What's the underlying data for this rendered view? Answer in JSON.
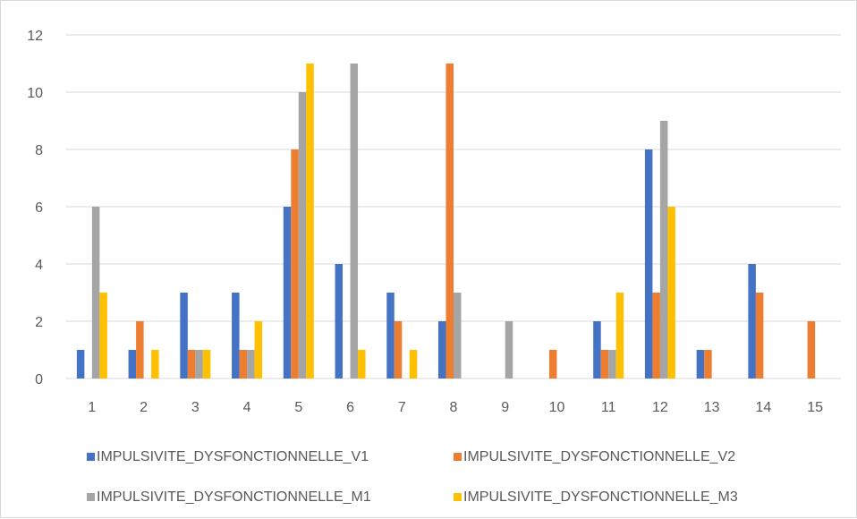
{
  "chart_data": {
    "type": "bar",
    "title": "",
    "xlabel": "",
    "ylabel": "",
    "categories": [
      "1",
      "2",
      "3",
      "4",
      "5",
      "6",
      "7",
      "8",
      "9",
      "10",
      "11",
      "12",
      "13",
      "14",
      "15"
    ],
    "ylim": [
      0,
      12
    ],
    "yticks": [
      0,
      2,
      4,
      6,
      8,
      10,
      12
    ],
    "grid": true,
    "legend_position": "bottom",
    "series": [
      {
        "name": "IMPULSIVITE_DYSFONCTIONNELLE_V1",
        "color": "#4472C4",
        "values": [
          1,
          1,
          3,
          3,
          6,
          4,
          3,
          2,
          0,
          0,
          2,
          8,
          1,
          4,
          0
        ]
      },
      {
        "name": "IMPULSIVITE_DYSFONCTIONNELLE_V2",
        "color": "#ED7D31",
        "values": [
          0,
          2,
          1,
          1,
          8,
          0,
          2,
          11,
          0,
          1,
          1,
          3,
          1,
          3,
          2
        ]
      },
      {
        "name": "IMPULSIVITE_DYSFONCTIONNELLE_M1",
        "color": "#A5A5A5",
        "values": [
          6,
          0,
          1,
          1,
          10,
          11,
          0,
          3,
          2,
          0,
          1,
          9,
          0,
          0,
          0
        ]
      },
      {
        "name": "IMPULSIVITE_DYSFONCTIONNELLE_M3",
        "color": "#FFC000",
        "values": [
          3,
          1,
          1,
          2,
          11,
          1,
          1,
          0,
          0,
          0,
          3,
          6,
          0,
          0,
          0
        ]
      }
    ]
  }
}
